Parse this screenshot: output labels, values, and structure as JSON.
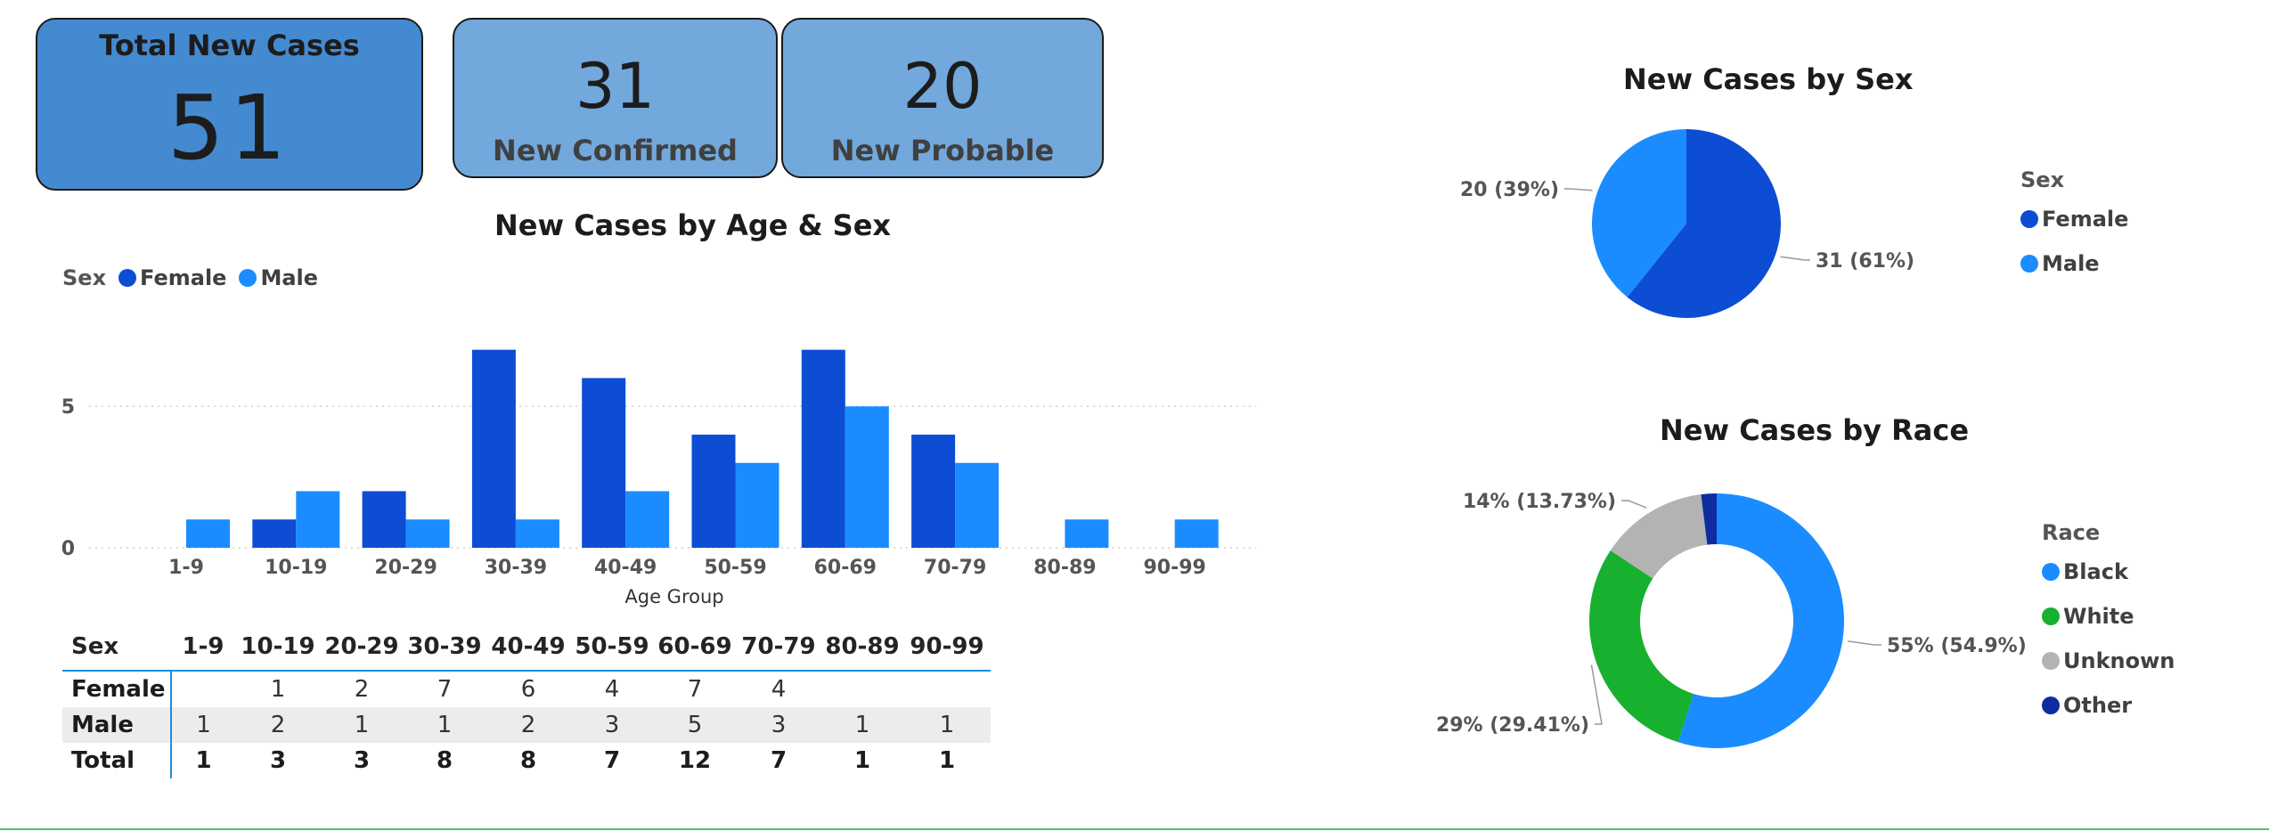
{
  "cards": {
    "total": {
      "title": "Total New Cases",
      "value": "51"
    },
    "confirmed": {
      "value": "31",
      "label": "New Confirmed"
    },
    "probable": {
      "value": "20",
      "label": "New Probable"
    }
  },
  "colors": {
    "female": "#0c4dd4",
    "male": "#1a8cff",
    "black": "#1a8cff",
    "white": "#17b02f",
    "unknown": "#b3b3b3",
    "other": "#0f2ba0"
  },
  "age_chart": {
    "legend_title": "Sex",
    "legend_female": "Female",
    "legend_male": "Male"
  },
  "sex_chart": {
    "legend_title": "Sex",
    "legend_female": "Female",
    "legend_male": "Male"
  },
  "race_chart": {
    "legend_title": "Race",
    "legend_items": [
      "Black",
      "White",
      "Unknown",
      "Other"
    ]
  },
  "table": {
    "header_sex": "Sex",
    "columns": [
      "1-9",
      "10-19",
      "20-29",
      "30-39",
      "40-49",
      "50-59",
      "60-69",
      "70-79",
      "80-89",
      "90-99"
    ],
    "rows": [
      {
        "label": "Female",
        "values": [
          "",
          "1",
          "2",
          "7",
          "6",
          "4",
          "7",
          "4",
          "",
          ""
        ]
      },
      {
        "label": "Male",
        "values": [
          "1",
          "2",
          "1",
          "1",
          "2",
          "3",
          "5",
          "3",
          "1",
          "1"
        ]
      },
      {
        "label": "Total",
        "values": [
          "1",
          "3",
          "3",
          "8",
          "8",
          "7",
          "12",
          "7",
          "1",
          "1"
        ]
      }
    ]
  },
  "chart_data": [
    {
      "type": "bar",
      "title": "New Cases by Age & Sex",
      "xlabel": "Age Group",
      "ylabel": "",
      "categories": [
        "1-9",
        "10-19",
        "20-29",
        "30-39",
        "40-49",
        "50-59",
        "60-69",
        "70-79",
        "80-89",
        "90-99"
      ],
      "series": [
        {
          "name": "Female",
          "values": [
            0,
            1,
            2,
            7,
            6,
            4,
            7,
            4,
            0,
            0
          ]
        },
        {
          "name": "Male",
          "values": [
            1,
            2,
            1,
            1,
            2,
            3,
            5,
            3,
            1,
            1
          ]
        }
      ],
      "yticks": [
        0,
        5
      ],
      "ylim": [
        0,
        7.4
      ],
      "grid": true,
      "legend": "top-left"
    },
    {
      "type": "pie",
      "title": "New Cases by Sex",
      "labels": [
        "Female",
        "Male"
      ],
      "values": [
        31,
        20
      ],
      "data_labels": [
        "31 (61%)",
        "20 (39%)"
      ],
      "legend": "right"
    },
    {
      "type": "pie",
      "title": "New Cases by Race",
      "labels": [
        "Black",
        "White",
        "Unknown",
        "Other"
      ],
      "values": [
        54.9,
        29.41,
        13.73,
        1.96
      ],
      "data_labels": [
        "55% (54.9%)",
        "29% (29.41%)",
        "14% (13.73%)",
        ""
      ],
      "donut": true,
      "legend": "right"
    }
  ]
}
